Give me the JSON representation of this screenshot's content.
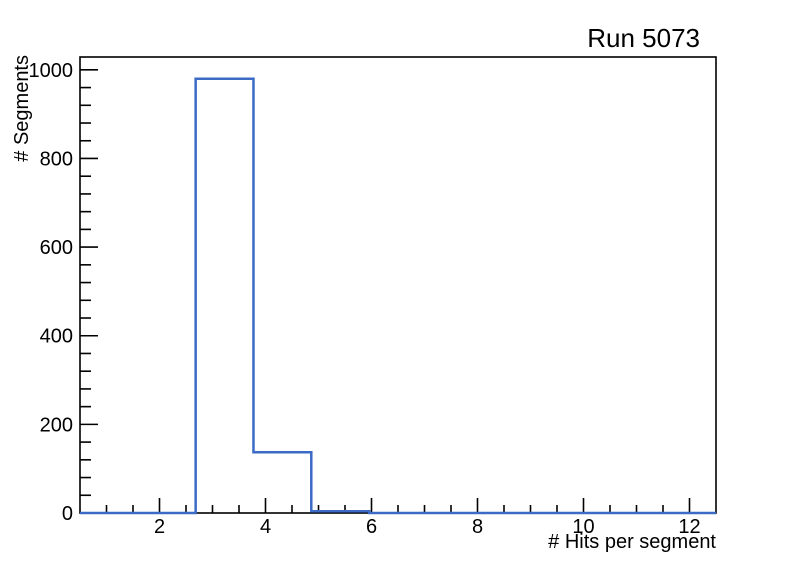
{
  "chart_data": {
    "type": "bar",
    "subtype": "step-histogram",
    "title": "Run 5073",
    "xlabel": "# Hits per segment",
    "ylabel": "# Segments",
    "xlim": [
      0.5,
      12.5
    ],
    "ylim": [
      0,
      1029
    ],
    "n_bins": 11,
    "bin_edges": [
      0.5,
      1.591,
      2.682,
      3.773,
      4.864,
      5.955,
      7.045,
      8.136,
      9.227,
      10.318,
      11.409,
      12.5
    ],
    "counts": [
      0,
      0,
      980,
      137,
      4,
      0,
      0,
      0,
      0,
      0,
      0
    ],
    "x_major_ticks": [
      2,
      4,
      6,
      8,
      10,
      12
    ],
    "x_minor_step": 0.5,
    "y_major_ticks": [
      0,
      200,
      400,
      600,
      800,
      1000
    ],
    "y_minor_step": 40,
    "grid": false,
    "legend": null,
    "line_color": "#3b6bc5",
    "axis_color": "#000000",
    "background_color": "#ffffff"
  }
}
